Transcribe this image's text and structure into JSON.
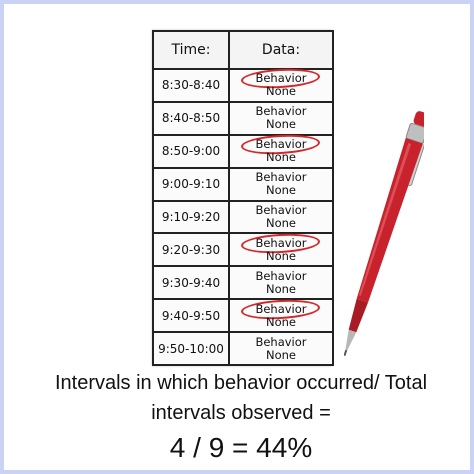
{
  "table": {
    "headers": {
      "time": "Time:",
      "data": "Data:"
    },
    "rows": [
      {
        "time": "8:30-8:40",
        "behavior": "Behavior",
        "none": "None",
        "circled": "behavior"
      },
      {
        "time": "8:40-8:50",
        "behavior": "Behavior",
        "none": "None",
        "circled": ""
      },
      {
        "time": "8:50-9:00",
        "behavior": "Behavior",
        "none": "None",
        "circled": "behavior"
      },
      {
        "time": "9:00-9:10",
        "behavior": "Behavior",
        "none": "None",
        "circled": ""
      },
      {
        "time": "9:10-9:20",
        "behavior": "Behavior",
        "none": "None",
        "circled": ""
      },
      {
        "time": "9:20-9:30",
        "behavior": "Behavior",
        "none": "None",
        "circled": "behavior"
      },
      {
        "time": "9:30-9:40",
        "behavior": "Behavior",
        "none": "None",
        "circled": ""
      },
      {
        "time": "9:40-9:50",
        "behavior": "Behavior",
        "none": "None",
        "circled": "behavior"
      },
      {
        "time": "9:50-10:00",
        "behavior": "Behavior",
        "none": "None",
        "circled": ""
      }
    ]
  },
  "caption": {
    "line1": "Intervals in which behavior occurred/ Total",
    "line2": "intervals observed =",
    "result": "4 / 9 = 44%"
  },
  "colors": {
    "circle": "#d42828",
    "pen_body": "#c8232c",
    "background_border": "#c9d3f5"
  },
  "icons": {
    "pen": "pen-icon"
  }
}
